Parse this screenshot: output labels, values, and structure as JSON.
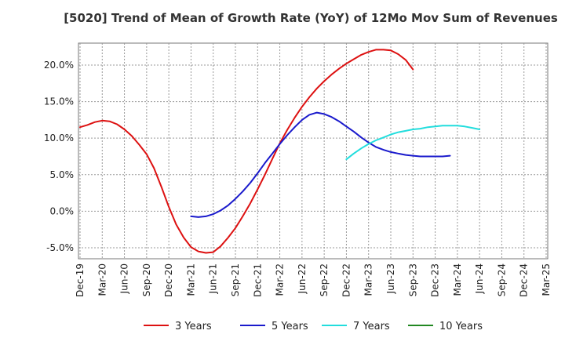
{
  "chart_data": {
    "type": "line",
    "title": "[5020]  Trend of Mean of Growth Rate (YoY) of 12Mo Mov Sum of Revenues",
    "xlabel": "",
    "ylabel": "",
    "ylim": [
      -6.5,
      23.0
    ],
    "y_ticks": [
      -5.0,
      0.0,
      5.0,
      10.0,
      15.0,
      20.0
    ],
    "y_tick_labels": [
      "-5.0%",
      "0.0%",
      "5.0%",
      "10.0%",
      "15.0%",
      "20.0%"
    ],
    "x_tick_labels": [
      "Dec-19",
      "Mar-20",
      "Jun-20",
      "Sep-20",
      "Dec-20",
      "Mar-21",
      "Jun-21",
      "Sep-21",
      "Dec-21",
      "Mar-22",
      "Jun-22",
      "Sep-22",
      "Dec-22",
      "Mar-23",
      "Jun-23",
      "Sep-23",
      "Dec-23",
      "Mar-24",
      "Jun-24",
      "Sep-24",
      "Dec-24",
      "Mar-25"
    ],
    "x_unit": "quarters since Dec-19",
    "grid": true,
    "legend_position": "bottom",
    "series": [
      {
        "name": "3 Years",
        "color": "#dd1111",
        "x": [
          0,
          0.33,
          0.67,
          1,
          1.33,
          1.67,
          2,
          2.33,
          2.67,
          3,
          3.33,
          3.67,
          4,
          4.33,
          4.67,
          5,
          5.33,
          5.67,
          6,
          6.33,
          6.67,
          7,
          7.33,
          7.67,
          8,
          8.33,
          8.67,
          9,
          9.33,
          9.67,
          10,
          10.33,
          10.67,
          11,
          11.33,
          11.67,
          12,
          12.33,
          12.67,
          13,
          13.33,
          13.67,
          14,
          14.33,
          14.67,
          15,
          15.33,
          15.67,
          16,
          16.33,
          16.67,
          17,
          17.33,
          17.67,
          18,
          18.33,
          18.67,
          19,
          19.33,
          19.67,
          20
        ],
        "values": [
          11.5,
          11.8,
          12.2,
          12.4,
          12.3,
          11.9,
          11.2,
          10.3,
          9.1,
          7.8,
          5.9,
          3.3,
          0.6,
          -1.8,
          -3.6,
          -4.9,
          -5.5,
          -5.7,
          -5.6,
          -4.8,
          -3.6,
          -2.3,
          -0.7,
          1.1,
          3.0,
          5.0,
          7.2,
          9.3,
          11.1,
          12.8,
          14.3,
          15.6,
          16.8,
          17.8,
          18.7,
          19.5,
          20.2,
          20.8,
          21.4,
          21.8,
          22.1,
          22.1,
          22.0,
          21.5,
          20.7,
          19.4,
          null,
          null,
          null,
          null,
          null,
          null,
          null,
          null,
          null,
          null,
          null,
          null,
          null,
          null,
          null
        ]
      },
      {
        "name": "5 Years",
        "color": "#1a1acc",
        "x": [
          5,
          5.33,
          5.67,
          6,
          6.33,
          6.67,
          7,
          7.33,
          7.67,
          8,
          8.33,
          8.67,
          9,
          9.33,
          9.67,
          10,
          10.33,
          10.67,
          11,
          11.33,
          11.67,
          12,
          12.33,
          12.67,
          13,
          13.33,
          13.67,
          14,
          14.33,
          14.67,
          15,
          15.33,
          15.67,
          16,
          16.33,
          16.67,
          17,
          17.33,
          17.67,
          18,
          18.33,
          18.67,
          19,
          19.33,
          19.67,
          20
        ],
        "values": [
          -0.7,
          -0.8,
          -0.7,
          -0.4,
          0.1,
          0.8,
          1.7,
          2.7,
          3.9,
          5.2,
          6.6,
          7.9,
          9.2,
          10.4,
          11.5,
          12.5,
          13.2,
          13.5,
          13.3,
          12.9,
          12.3,
          11.6,
          10.9,
          10.1,
          9.4,
          8.8,
          8.4,
          8.1,
          7.9,
          7.7,
          7.6,
          7.5,
          7.5,
          7.5,
          7.5,
          7.6,
          null,
          null,
          null,
          null,
          null,
          null,
          null,
          null,
          null,
          null
        ]
      },
      {
        "name": "7 Years",
        "color": "#22dddd",
        "x": [
          12,
          12.33,
          12.67,
          13,
          13.33,
          13.67,
          14,
          14.33,
          14.67,
          15,
          15.33,
          15.67,
          16,
          16.33,
          16.67,
          17,
          17.33,
          17.67,
          18,
          18.33,
          18.67,
          19,
          19.33,
          19.67,
          20
        ],
        "values": [
          7.1,
          7.9,
          8.6,
          9.2,
          9.7,
          10.1,
          10.5,
          10.8,
          11.0,
          11.2,
          11.3,
          11.5,
          11.6,
          11.7,
          11.7,
          11.7,
          11.6,
          11.4,
          11.2,
          null,
          null,
          null,
          null,
          null,
          null
        ]
      },
      {
        "name": "10 Years",
        "color": "#228822",
        "x": [],
        "values": []
      }
    ]
  }
}
